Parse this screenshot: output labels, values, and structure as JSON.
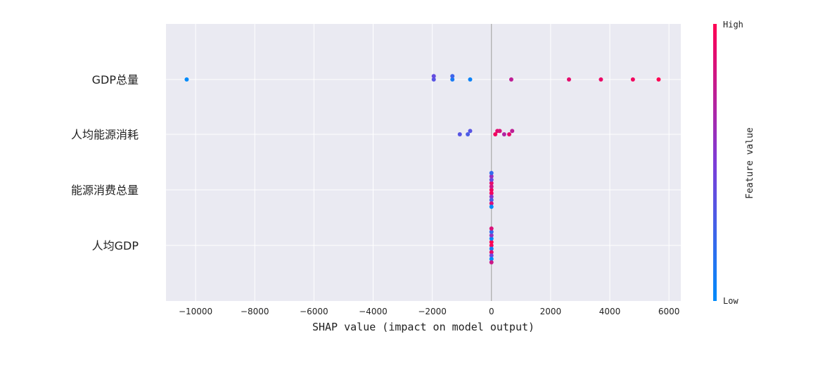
{
  "chart_data": {
    "type": "scatter",
    "subtype": "shap-beeswarm",
    "xlabel": "SHAP value (impact on model output)",
    "xlim": [
      -11000,
      6400
    ],
    "xticks": [
      -10000,
      -8000,
      -6000,
      -4000,
      -2000,
      0,
      2000,
      4000,
      6000
    ],
    "xtick_labels": [
      "−10000",
      "−8000",
      "−6000",
      "−4000",
      "−2000",
      "0",
      "2000",
      "4000",
      "6000"
    ],
    "grid": true,
    "background": "#eaeaf2",
    "colorbar": {
      "title": "Feature value",
      "high_label": "High",
      "low_label": "Low",
      "high_color": "#ff0052",
      "low_color": "#008bfb"
    },
    "features": [
      {
        "name": "GDP总量",
        "points": [
          {
            "shap": -10300,
            "v": 0.0
          },
          {
            "shap": -1950,
            "v": 0.35
          },
          {
            "shap": -1950,
            "v": 0.4
          },
          {
            "shap": -1320,
            "v": 0.1
          },
          {
            "shap": -1320,
            "v": 0.25
          },
          {
            "shap": -720,
            "v": 0.05
          },
          {
            "shap": 670,
            "v": 0.75
          },
          {
            "shap": 2620,
            "v": 0.9
          },
          {
            "shap": 3700,
            "v": 0.92
          },
          {
            "shap": 4780,
            "v": 0.95
          },
          {
            "shap": 5650,
            "v": 1.0
          }
        ]
      },
      {
        "name": "人均能源消耗",
        "points": [
          {
            "shap": -1070,
            "v": 0.35
          },
          {
            "shap": -800,
            "v": 0.3
          },
          {
            "shap": -720,
            "v": 0.35
          },
          {
            "shap": 130,
            "v": 0.95
          },
          {
            "shap": 200,
            "v": 0.9
          },
          {
            "shap": 280,
            "v": 0.85
          },
          {
            "shap": 430,
            "v": 0.7
          },
          {
            "shap": 600,
            "v": 0.9
          },
          {
            "shap": 700,
            "v": 0.75
          }
        ]
      },
      {
        "name": "能源消费总量",
        "points": [
          {
            "shap": 0,
            "v": 0.95
          },
          {
            "shap": 0,
            "v": 0.8
          },
          {
            "shap": 0,
            "v": 0.95
          },
          {
            "shap": 0,
            "v": 0.9
          },
          {
            "shap": 0,
            "v": 0.55
          },
          {
            "shap": 0,
            "v": 0.4
          },
          {
            "shap": 0,
            "v": 0.3
          },
          {
            "shap": 0,
            "v": 0.6
          },
          {
            "shap": 0,
            "v": 0.85
          },
          {
            "shap": 0,
            "v": 0.2
          },
          {
            "shap": 0,
            "v": 0.0
          }
        ]
      },
      {
        "name": "人均GDP",
        "points": [
          {
            "shap": 0,
            "v": 0.95
          },
          {
            "shap": 0,
            "v": 1.0
          },
          {
            "shap": 0,
            "v": 0.1
          },
          {
            "shap": 0,
            "v": 0.05
          },
          {
            "shap": 0,
            "v": 0.9
          },
          {
            "shap": 0,
            "v": 0.6
          },
          {
            "shap": 0,
            "v": 0.45
          },
          {
            "shap": 0,
            "v": 0.2
          },
          {
            "shap": 0,
            "v": 0.0
          },
          {
            "shap": 0,
            "v": 0.85
          },
          {
            "shap": 0,
            "v": 0.8
          }
        ]
      }
    ]
  }
}
